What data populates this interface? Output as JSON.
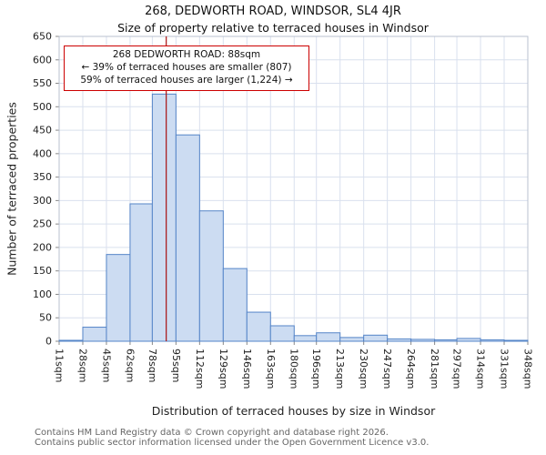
{
  "title": "268, DEDWORTH ROAD, WINDSOR, SL4 4JR",
  "subtitle": "Size of property relative to terraced houses in Windsor",
  "ylabel": "Number of terraced properties",
  "xlabel": "Distribution of terraced houses by size in Windsor",
  "annotation": {
    "line1": "268 DEDWORTH ROAD: 88sqm",
    "line2": "← 39% of terraced houses are smaller (807)",
    "line3": "59% of terraced houses are larger (1,224) →"
  },
  "footer": {
    "line1": "Contains HM Land Registry data © Crown copyright and database right 2026.",
    "line2": "Contains public sector information licensed under the Open Government Licence v3.0."
  },
  "colors": {
    "bar_fill": "#ccdcf2",
    "bar_stroke": "#5585c8",
    "marker_line": "#aa1111",
    "annotation_border": "#cc0000",
    "grid": "#d9e0ee",
    "plot_border": "#b9c0cf"
  },
  "chart_data": {
    "type": "bar",
    "title": "268, DEDWORTH ROAD, WINDSOR, SL4 4JR — Size of property relative to terraced houses in Windsor",
    "xlabel": "Distribution of terraced houses by size in Windsor",
    "ylabel": "Number of terraced properties",
    "bin_edges": [
      11,
      28,
      45,
      62,
      78,
      95,
      112,
      129,
      146,
      163,
      180,
      196,
      213,
      230,
      247,
      264,
      281,
      297,
      314,
      331,
      348
    ],
    "values": [
      2,
      30,
      185,
      293,
      527,
      440,
      278,
      155,
      62,
      33,
      12,
      18,
      8,
      13,
      5,
      4,
      3,
      6,
      3,
      2
    ],
    "marker_value": 88,
    "ylim": [
      0,
      650
    ],
    "ytick_step": 50,
    "tick_suffix": "sqm",
    "grid": true,
    "legend": false
  }
}
